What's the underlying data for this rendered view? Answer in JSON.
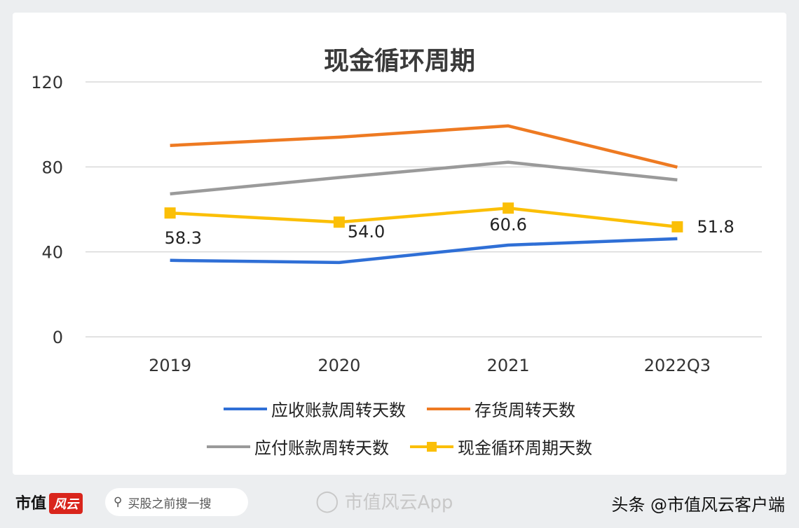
{
  "chart_data": {
    "type": "line",
    "title": "现金循环周期",
    "categories": [
      "2019",
      "2020",
      "2021",
      "2022Q3"
    ],
    "ylim": [
      0,
      120
    ],
    "yticks": [
      0,
      40,
      80,
      120
    ],
    "grid": true,
    "legend_position": "bottom",
    "series": [
      {
        "name": "应收账款周转天数",
        "color": "#2f6fd6",
        "values": [
          36.0,
          35.0,
          43.2,
          46.2
        ],
        "markers": false
      },
      {
        "name": "存货周转天数",
        "color": "#ee7a22",
        "values": [
          90.1,
          94.0,
          99.3,
          79.9
        ],
        "markers": false
      },
      {
        "name": "应付账款周转天数",
        "color": "#9a9a9a",
        "values": [
          67.3,
          75.0,
          82.2,
          73.9
        ],
        "markers": false
      },
      {
        "name": "现金循环周期天数",
        "color": "#fbbf07",
        "values": [
          58.3,
          54.0,
          60.6,
          51.8
        ],
        "markers": true,
        "data_labels": [
          "58.3",
          "54.0",
          "60.6",
          "51.8"
        ]
      }
    ]
  },
  "footer": {
    "brand": "市值",
    "brand_logo": "风云",
    "search_placeholder": "买股之前搜一搜",
    "app_name": "市值风云App",
    "source": "头条 @市值风云客户端"
  }
}
